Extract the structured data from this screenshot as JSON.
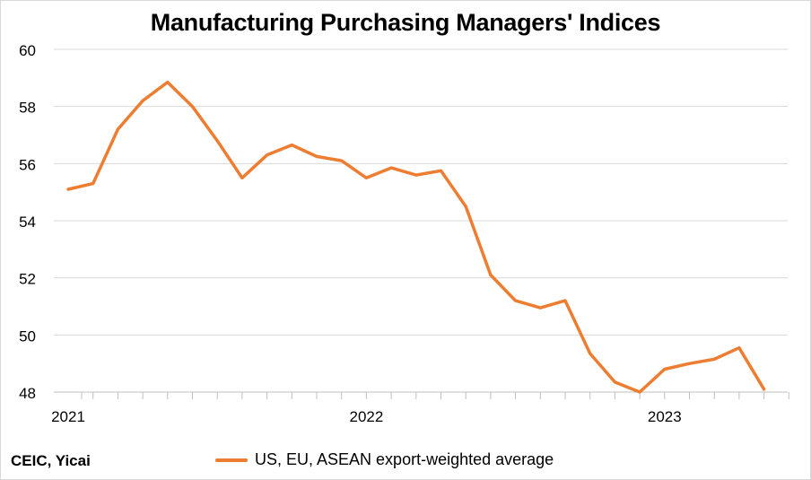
{
  "colors": {
    "series": "#ED7D31",
    "grid": "#D9D9D9",
    "axis": "#BFBFBF",
    "text": "#000000"
  },
  "source": "CEIC, Yicai",
  "chart_data": {
    "type": "line",
    "title": "Manufacturing Purchasing Managers' Indices",
    "xlabel": "",
    "ylabel": "",
    "ylim": [
      48,
      60
    ],
    "yticks": [
      48,
      50,
      52,
      54,
      56,
      58,
      60
    ],
    "x_tick_labels": [
      {
        "label": "2021",
        "index": 0
      },
      {
        "label": "2022",
        "index": 12
      },
      {
        "label": "2023",
        "index": 24
      }
    ],
    "x": [
      "2021-01",
      "2021-02",
      "2021-03",
      "2021-04",
      "2021-05",
      "2021-06",
      "2021-07",
      "2021-08",
      "2021-09",
      "2021-10",
      "2021-11",
      "2021-12",
      "2022-01",
      "2022-02",
      "2022-03",
      "2022-04",
      "2022-05",
      "2022-06",
      "2022-07",
      "2022-08",
      "2022-09",
      "2022-10",
      "2022-11",
      "2022-12",
      "2023-01",
      "2023-02",
      "2023-03",
      "2023-04",
      "2023-05"
    ],
    "grid": true,
    "legend_position": "bottom",
    "series": [
      {
        "name": "US, EU, ASEAN export-weighted average",
        "values": [
          55.1,
          55.3,
          57.2,
          58.2,
          58.85,
          58.0,
          56.8,
          55.5,
          56.3,
          56.65,
          56.25,
          56.1,
          55.5,
          55.85,
          55.6,
          55.75,
          54.5,
          52.1,
          51.2,
          50.95,
          51.2,
          49.35,
          48.35,
          48.0,
          48.8,
          49.0,
          49.15,
          49.55,
          48.1
        ]
      }
    ]
  }
}
